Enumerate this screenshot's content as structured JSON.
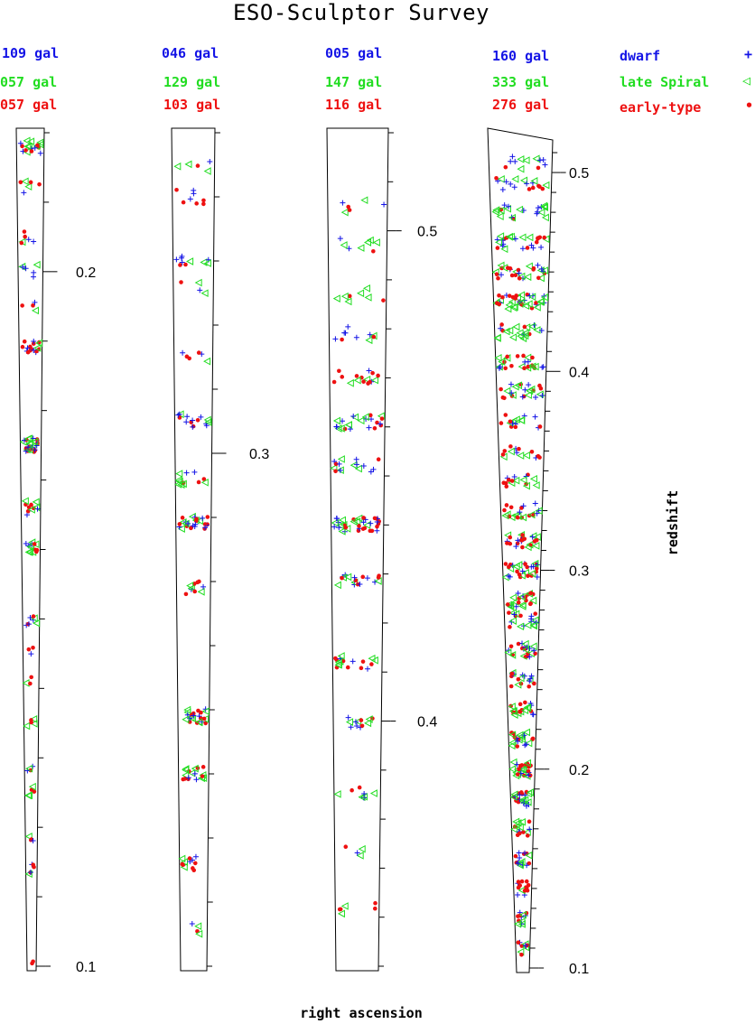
{
  "chart_data": {
    "type": "scatter",
    "title": "ESO-Sculptor Survey",
    "xlabel": "right ascension",
    "ylabel": "redshift",
    "legend": [
      {
        "name": "dwarf",
        "marker": "+",
        "color": "#1414e6"
      },
      {
        "name": "late Spiral",
        "marker": "◁",
        "color": "#22dd22"
      },
      {
        "name": "early-type",
        "marker": "•",
        "color": "#ee1111"
      }
    ],
    "panels": [
      {
        "zrange": [
          0.1,
          0.22
        ],
        "ticks_labeled": [
          "0.1",
          "0.2"
        ],
        "counts": {
          "dwarf": "109 gal",
          "late Spiral": "057 gal",
          "early-type": "057 gal"
        },
        "groups": [
          {
            "z": 0.1,
            "n": 6
          },
          {
            "z": 0.114,
            "n": 6
          },
          {
            "z": 0.118,
            "n": 4
          },
          {
            "z": 0.125,
            "n": 5
          },
          {
            "z": 0.128,
            "n": 4
          },
          {
            "z": 0.135,
            "n": 5
          },
          {
            "z": 0.141,
            "n": 3
          },
          {
            "z": 0.146,
            "n": 3
          },
          {
            "z": 0.15,
            "n": 8
          },
          {
            "z": 0.16,
            "n": 14
          },
          {
            "z": 0.166,
            "n": 12
          },
          {
            "z": 0.175,
            "n": 28
          },
          {
            "z": 0.189,
            "n": 18
          },
          {
            "z": 0.195,
            "n": 4
          },
          {
            "z": 0.2,
            "n": 6
          },
          {
            "z": 0.205,
            "n": 6
          },
          {
            "z": 0.212,
            "n": 6
          },
          {
            "z": 0.218,
            "n": 18
          }
        ]
      },
      {
        "zrange": [
          0.22,
          0.35
        ],
        "ticks_labeled": [
          "0.3"
        ],
        "counts": {
          "dwarf": "046 gal",
          "late Spiral": "129 gal",
          "early-type": "103 gal"
        },
        "groups": [
          {
            "z": 0.226,
            "n": 4
          },
          {
            "z": 0.236,
            "n": 12
          },
          {
            "z": 0.25,
            "n": 18
          },
          {
            "z": 0.259,
            "n": 24
          },
          {
            "z": 0.279,
            "n": 10
          },
          {
            "z": 0.289,
            "n": 26
          },
          {
            "z": 0.296,
            "n": 12
          },
          {
            "z": 0.305,
            "n": 16
          },
          {
            "z": 0.315,
            "n": 6
          },
          {
            "z": 0.326,
            "n": 4
          },
          {
            "z": 0.33,
            "n": 10
          },
          {
            "z": 0.34,
            "n": 8
          },
          {
            "z": 0.345,
            "n": 5
          }
        ]
      },
      {
        "zrange": [
          0.35,
          0.52
        ],
        "ticks_labeled": [
          "0.4",
          "0.5"
        ],
        "counts": {
          "dwarf": "005 gal",
          "late Spiral": "147 gal",
          "early-type": "116 gal"
        },
        "groups": [
          {
            "z": 0.362,
            "n": 6
          },
          {
            "z": 0.373,
            "n": 4
          },
          {
            "z": 0.385,
            "n": 8
          },
          {
            "z": 0.4,
            "n": 12
          },
          {
            "z": 0.412,
            "n": 18
          },
          {
            "z": 0.429,
            "n": 18
          },
          {
            "z": 0.44,
            "n": 38
          },
          {
            "z": 0.452,
            "n": 16
          },
          {
            "z": 0.461,
            "n": 24
          },
          {
            "z": 0.47,
            "n": 16
          },
          {
            "z": 0.479,
            "n": 10
          },
          {
            "z": 0.487,
            "n": 8
          },
          {
            "z": 0.497,
            "n": 8
          },
          {
            "z": 0.505,
            "n": 6
          }
        ]
      },
      {
        "zrange": [
          0.1,
          0.52
        ],
        "ticks_labeled": [
          "0.1",
          "0.2",
          "0.3",
          "0.4",
          "0.5"
        ],
        "counts": {
          "dwarf": "160 gal",
          "late Spiral": "333 gal",
          "early-type": "276 gal"
        },
        "groups": [
          {
            "z": 0.11,
            "n": 10
          },
          {
            "z": 0.125,
            "n": 12
          },
          {
            "z": 0.14,
            "n": 14
          },
          {
            "z": 0.155,
            "n": 16
          },
          {
            "z": 0.17,
            "n": 16
          },
          {
            "z": 0.185,
            "n": 24
          },
          {
            "z": 0.2,
            "n": 30
          },
          {
            "z": 0.215,
            "n": 22
          },
          {
            "z": 0.23,
            "n": 22
          },
          {
            "z": 0.245,
            "n": 18
          },
          {
            "z": 0.26,
            "n": 24
          },
          {
            "z": 0.275,
            "n": 20
          },
          {
            "z": 0.285,
            "n": 24
          },
          {
            "z": 0.3,
            "n": 30
          },
          {
            "z": 0.315,
            "n": 26
          },
          {
            "z": 0.33,
            "n": 22
          },
          {
            "z": 0.345,
            "n": 16
          },
          {
            "z": 0.36,
            "n": 14
          },
          {
            "z": 0.375,
            "n": 16
          },
          {
            "z": 0.39,
            "n": 24
          },
          {
            "z": 0.405,
            "n": 26
          },
          {
            "z": 0.42,
            "n": 22
          },
          {
            "z": 0.435,
            "n": 40
          },
          {
            "z": 0.45,
            "n": 30
          },
          {
            "z": 0.465,
            "n": 26
          },
          {
            "z": 0.48,
            "n": 22
          },
          {
            "z": 0.495,
            "n": 18
          },
          {
            "z": 0.505,
            "n": 12
          }
        ]
      }
    ]
  }
}
